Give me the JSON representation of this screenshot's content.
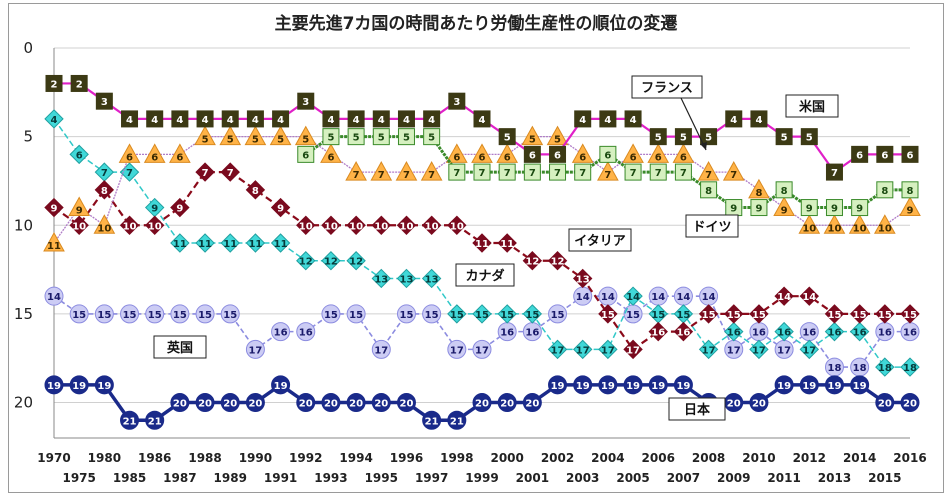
{
  "chart_data": {
    "type": "line",
    "title": "主要先進7カ国の時間あたり労働生産性の順位の変遷",
    "xlabel": "",
    "ylabel": "",
    "ylim": [
      0,
      22
    ],
    "y_inverted": true,
    "y_ticks": [
      0,
      5,
      10,
      15,
      20
    ],
    "x": [
      "1970",
      "1975",
      "1980",
      "1985",
      "1986",
      "1987",
      "1988",
      "1989",
      "1990",
      "1991",
      "1992",
      "1993",
      "1994",
      "1995",
      "1996",
      "1997",
      "1998",
      "1999",
      "2000",
      "2001",
      "2002",
      "2003",
      "2004",
      "2005",
      "2006",
      "2007",
      "2008",
      "2009",
      "2010",
      "2011",
      "2012",
      "2013",
      "2014",
      "2015",
      "2016"
    ],
    "series": [
      {
        "name": "米国",
        "color": "#e020c8",
        "marker": "square-dark",
        "values": [
          2,
          2,
          3,
          4,
          4,
          4,
          4,
          4,
          4,
          4,
          3,
          4,
          4,
          4,
          4,
          4,
          3,
          4,
          5,
          6,
          6,
          4,
          4,
          4,
          5,
          5,
          5,
          4,
          4,
          5,
          5,
          7,
          6,
          6,
          6
        ]
      },
      {
        "name": "フランス",
        "color": "#b07cc8",
        "marker": "triangle-orange",
        "values": [
          11,
          9,
          10,
          6,
          6,
          6,
          5,
          5,
          5,
          5,
          5,
          6,
          7,
          7,
          7,
          7,
          6,
          6,
          6,
          5,
          5,
          6,
          7,
          6,
          6,
          6,
          7,
          7,
          8,
          9,
          10,
          10,
          10,
          10,
          9
        ]
      },
      {
        "name": "ドイツ",
        "color": "#3a8a2a",
        "marker": "square-green",
        "values": [
          null,
          null,
          null,
          null,
          null,
          null,
          null,
          null,
          null,
          null,
          6,
          5,
          5,
          5,
          5,
          5,
          7,
          7,
          7,
          7,
          7,
          7,
          6,
          7,
          7,
          7,
          8,
          9,
          9,
          8,
          9,
          9,
          9,
          8,
          8
        ]
      },
      {
        "name": "イタリア",
        "color": "#8b0a1a",
        "marker": "diamond-maroon",
        "values": [
          9,
          10,
          8,
          10,
          10,
          9,
          7,
          7,
          8,
          9,
          10,
          10,
          10,
          10,
          10,
          10,
          10,
          11,
          11,
          12,
          12,
          13,
          15,
          17,
          16,
          16,
          15,
          15,
          15,
          14,
          14,
          15,
          15,
          15,
          15
        ]
      },
      {
        "name": "カナダ",
        "color": "#30c8c8",
        "marker": "diamond-cyan",
        "values": [
          4,
          6,
          7,
          7,
          9,
          11,
          11,
          11,
          11,
          11,
          12,
          12,
          12,
          13,
          13,
          13,
          15,
          15,
          15,
          15,
          17,
          17,
          17,
          14,
          15,
          15,
          17,
          16,
          17,
          16,
          17,
          16,
          16,
          18,
          18
        ]
      },
      {
        "name": "英国",
        "color": "#8c8ce0",
        "marker": "circle-lavender",
        "values": [
          14,
          15,
          15,
          15,
          15,
          15,
          15,
          15,
          17,
          16,
          16,
          15,
          15,
          17,
          15,
          15,
          17,
          17,
          16,
          16,
          15,
          14,
          14,
          15,
          14,
          14,
          14,
          17,
          16,
          17,
          16,
          18,
          18,
          16,
          16
        ]
      },
      {
        "name": "日本",
        "color": "#1a2a8a",
        "marker": "circle-navy",
        "values": [
          19,
          19,
          19,
          21,
          21,
          20,
          20,
          20,
          20,
          19,
          20,
          20,
          20,
          20,
          20,
          21,
          21,
          20,
          20,
          20,
          19,
          19,
          19,
          19,
          19,
          19,
          20,
          20,
          20,
          19,
          19,
          19,
          19,
          20,
          20
        ]
      }
    ],
    "annotations": [
      {
        "text": "フランス",
        "series": "フランス"
      },
      {
        "text": "米国",
        "series": "米国"
      },
      {
        "text": "ドイツ",
        "series": "ドイツ"
      },
      {
        "text": "イタリア",
        "series": "イタリア"
      },
      {
        "text": "カナダ",
        "series": "カナダ"
      },
      {
        "text": "英国",
        "series": "英国"
      },
      {
        "text": "日本",
        "series": "日本"
      }
    ]
  }
}
